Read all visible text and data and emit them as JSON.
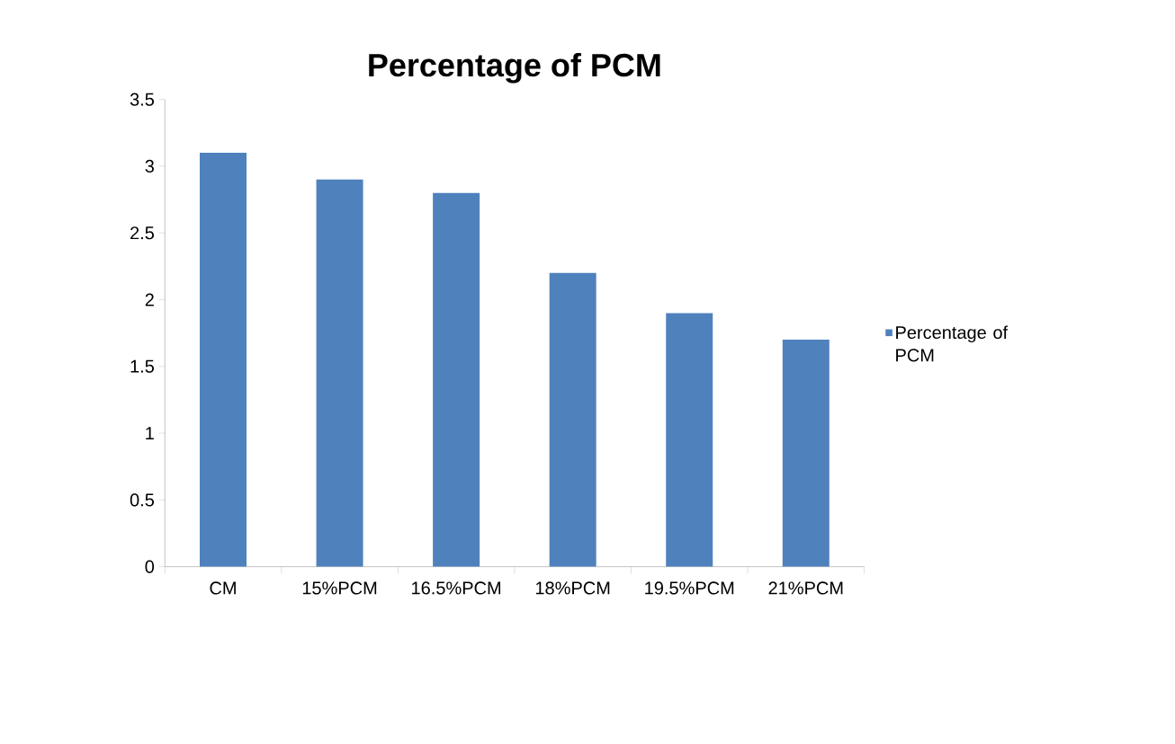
{
  "chart_data": {
    "type": "bar",
    "title": "Percentage of PCM",
    "categories": [
      "CM",
      "15%PCM",
      "16.5%PCM",
      "18%PCM",
      "19.5%PCM",
      "21%PCM"
    ],
    "series": [
      {
        "name": "Percentage of PCM",
        "color": "#4f81bd",
        "values": [
          3.1,
          2.9,
          2.8,
          2.2,
          1.9,
          1.7
        ]
      }
    ],
    "ylim": [
      0,
      3.5
    ],
    "yticks": [
      0,
      0.5,
      1,
      1.5,
      2,
      2.5,
      3,
      3.5
    ],
    "grid": false,
    "legend": "right"
  }
}
